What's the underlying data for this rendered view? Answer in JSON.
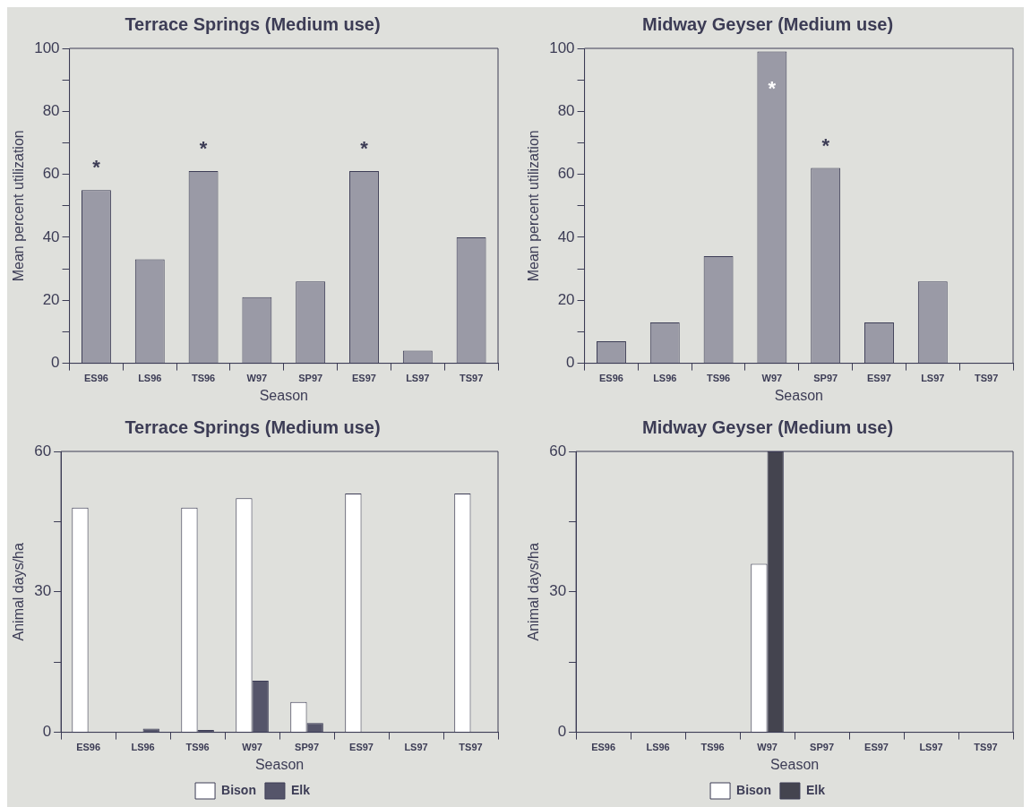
{
  "chart_data": [
    {
      "type": "bar",
      "title": "Terrace Springs (Medium use)",
      "xlabel": "Season",
      "ylabel": "Mean percent utilization",
      "categories": [
        "ES96",
        "LS96",
        "TS96",
        "W97",
        "SP97",
        "ES97",
        "LS97",
        "TS97"
      ],
      "values": [
        55,
        33,
        61,
        21,
        26,
        61,
        4,
        40
      ],
      "color": "#9a9aa6",
      "ylim": [
        0,
        100
      ],
      "yticks": [
        0,
        {
          "value": 10,
          "label": null
        },
        20,
        {
          "value": 30,
          "label": null
        },
        40,
        {
          "value": 50,
          "label": null
        },
        60,
        {
          "value": 70,
          "label": null
        },
        80,
        {
          "value": 90,
          "label": null
        },
        100
      ],
      "grid": false,
      "legend": false,
      "value_labels": [
        "*",
        null,
        "*",
        null,
        null,
        "*",
        null,
        null
      ]
    },
    {
      "type": "bar",
      "title": "Midway Geyser (Medium use)",
      "xlabel": "Season",
      "ylabel": "Mean percent utilization",
      "categories": [
        "ES96",
        "LS96",
        "TS96",
        "W97",
        "SP97",
        "ES97",
        "LS97",
        "TS97"
      ],
      "values": [
        7,
        13,
        34,
        99,
        62,
        13,
        26,
        0
      ],
      "color": "#9a9aa6",
      "ylim": [
        0,
        100
      ],
      "yticks": [
        0,
        {
          "value": 10,
          "label": null
        },
        20,
        {
          "value": 30,
          "label": null
        },
        40,
        {
          "value": 50,
          "label": null
        },
        60,
        {
          "value": 70,
          "label": null
        },
        80,
        {
          "value": 90,
          "label": null
        },
        100
      ],
      "grid": false,
      "legend": false,
      "value_labels": [
        null,
        null,
        null,
        "*",
        "*",
        null,
        null,
        null
      ]
    },
    {
      "type": "bar",
      "title": "Terrace Springs (Medium use)",
      "xlabel": "Season",
      "ylabel": "Animal days/ha",
      "categories": [
        "ES96",
        "LS96",
        "TS96",
        "W97",
        "SP97",
        "ES97",
        "LS97",
        "TS97"
      ],
      "series": [
        {
          "name": "Bison",
          "color": "#ffffff",
          "values": [
            48,
            0,
            48,
            50,
            6.5,
            51,
            0,
            51
          ]
        },
        {
          "name": "Elk",
          "color": "#55556a",
          "values": [
            0,
            0.8,
            0.5,
            11,
            2,
            0,
            0,
            0
          ]
        }
      ],
      "ylim": [
        0,
        60
      ],
      "yticks": [
        0,
        {
          "value": 15,
          "label": null
        },
        30,
        {
          "value": 45,
          "label": null
        },
        60
      ],
      "grid": false,
      "legend": "bottom"
    },
    {
      "type": "bar",
      "title": "Midway Geyser (Medium use)",
      "xlabel": "Season",
      "ylabel": "Animal days/ha",
      "categories": [
        "ES96",
        "LS96",
        "TS96",
        "W97",
        "SP97",
        "ES97",
        "LS97",
        "TS97"
      ],
      "series": [
        {
          "name": "Bison",
          "color": "#ffffff",
          "values": [
            0,
            0,
            0,
            36,
            0,
            0,
            0,
            0
          ]
        },
        {
          "name": "Elk",
          "color": "#44444f",
          "values": [
            0,
            0,
            0,
            60,
            0,
            0,
            0,
            0
          ]
        }
      ],
      "ylim": [
        0,
        60
      ],
      "yticks": [
        0,
        {
          "value": 15,
          "label": null
        },
        30,
        {
          "value": 45,
          "label": null
        },
        60
      ],
      "grid": false,
      "legend": "bottom"
    }
  ]
}
